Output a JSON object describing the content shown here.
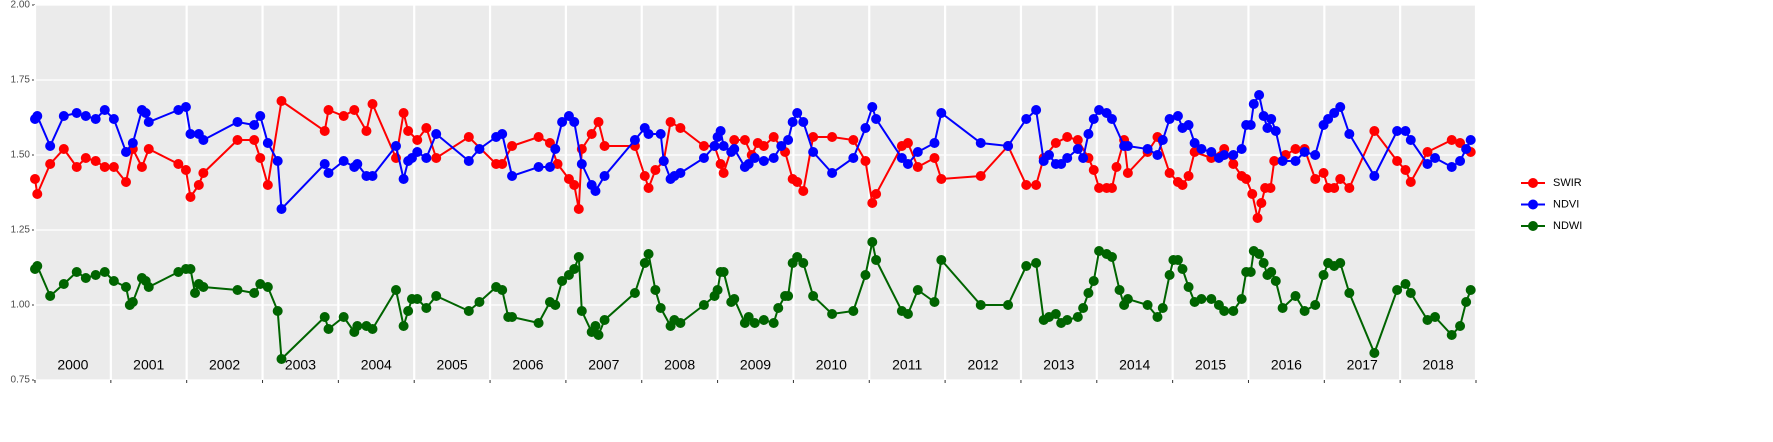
{
  "chart_data": {
    "type": "line",
    "xlim": [
      2000,
      2019
    ],
    "ylim": [
      0.75,
      2.0
    ],
    "yticks": [
      {
        "value": 0.75,
        "label": "0.75"
      },
      {
        "value": 1.0,
        "label": "1.00"
      },
      {
        "value": 1.25,
        "label": "1.25"
      },
      {
        "value": 1.5,
        "label": "1.50"
      },
      {
        "value": 1.75,
        "label": "1.75"
      },
      {
        "value": 2.0,
        "label": "2.00"
      }
    ],
    "xticks": [
      {
        "value": 2000.5,
        "label": "2000"
      },
      {
        "value": 2001.5,
        "label": "2001"
      },
      {
        "value": 2002.5,
        "label": "2002"
      },
      {
        "value": 2003.5,
        "label": "2003"
      },
      {
        "value": 2004.5,
        "label": "2004"
      },
      {
        "value": 2005.5,
        "label": "2005"
      },
      {
        "value": 2006.5,
        "label": "2006"
      },
      {
        "value": 2007.5,
        "label": "2007"
      },
      {
        "value": 2008.5,
        "label": "2008"
      },
      {
        "value": 2009.5,
        "label": "2009"
      },
      {
        "value": 2010.5,
        "label": "2010"
      },
      {
        "value": 2011.5,
        "label": "2011"
      },
      {
        "value": 2012.5,
        "label": "2012"
      },
      {
        "value": 2013.5,
        "label": "2013"
      },
      {
        "value": 2014.5,
        "label": "2014"
      },
      {
        "value": 2015.5,
        "label": "2015"
      },
      {
        "value": 2016.5,
        "label": "2016"
      },
      {
        "value": 2017.5,
        "label": "2017"
      },
      {
        "value": 2018.5,
        "label": "2018"
      }
    ],
    "xgrid": [
      2000,
      2001,
      2002,
      2003,
      2004,
      2005,
      2006,
      2007,
      2008,
      2009,
      2010,
      2011,
      2012,
      2013,
      2014,
      2015,
      2016,
      2017,
      2018,
      2019
    ],
    "grid": true,
    "legend": "right",
    "series": [
      {
        "name": "SWIR",
        "color": "#ff0000",
        "x": [
          2000.0,
          2000.03,
          2000.2,
          2000.38,
          2000.55,
          2000.67,
          2000.8,
          2000.92,
          2001.04,
          2001.2,
          2001.29,
          2001.41,
          2001.5,
          2001.89,
          2001.99,
          2002.05,
          2002.16,
          2002.22,
          2002.67,
          2002.89,
          2002.97,
          2003.07,
          2003.25,
          2003.82,
          2003.87,
          2004.07,
          2004.21,
          2004.37,
          2004.45,
          2004.76,
          2004.86,
          2004.92,
          2005.04,
          2005.16,
          2005.29,
          2005.72,
          2006.08,
          2006.16,
          2006.29,
          2006.64,
          2006.79,
          2006.89,
          2007.04,
          2007.11,
          2007.17,
          2007.21,
          2007.34,
          2007.43,
          2007.51,
          2007.91,
          2008.04,
          2008.09,
          2008.18,
          2008.29,
          2008.38,
          2008.51,
          2008.82,
          2008.96,
          2009.04,
          2009.08,
          2009.22,
          2009.36,
          2009.45,
          2009.53,
          2009.61,
          2009.74,
          2009.89,
          2009.99,
          2010.05,
          2010.13,
          2010.26,
          2010.51,
          2010.79,
          2010.95,
          2011.04,
          2011.09,
          2011.43,
          2011.51,
          2011.64,
          2011.86,
          2011.95,
          2012.47,
          2012.83,
          2013.07,
          2013.2,
          2013.3,
          2013.46,
          2013.61,
          2013.75,
          2013.89,
          2013.96,
          2014.03,
          2014.13,
          2014.2,
          2014.26,
          2014.36,
          2014.41,
          2014.67,
          2014.8,
          2014.96,
          2015.07,
          2015.13,
          2015.21,
          2015.29,
          2015.51,
          2015.68,
          2015.8,
          2015.91,
          2015.97,
          2016.05,
          2016.12,
          2016.17,
          2016.22,
          2016.29,
          2016.34,
          2016.49,
          2016.62,
          2016.74,
          2016.88,
          2016.99,
          2017.05,
          2017.13,
          2017.21,
          2017.33,
          2017.66,
          2017.96,
          2018.07,
          2018.14,
          2018.36,
          2018.68,
          2018.79,
          2018.93
        ],
        "values": [
          1.42,
          1.37,
          1.47,
          1.52,
          1.46,
          1.49,
          1.48,
          1.46,
          1.46,
          1.41,
          1.52,
          1.46,
          1.52,
          1.47,
          1.45,
          1.36,
          1.4,
          1.44,
          1.55,
          1.55,
          1.49,
          1.4,
          1.68,
          1.58,
          1.65,
          1.63,
          1.65,
          1.58,
          1.67,
          1.49,
          1.64,
          1.58,
          1.55,
          1.59,
          1.49,
          1.56,
          1.47,
          1.47,
          1.53,
          1.56,
          1.54,
          1.47,
          1.42,
          1.4,
          1.32,
          1.52,
          1.57,
          1.61,
          1.53,
          1.53,
          1.43,
          1.39,
          1.45,
          1.48,
          1.61,
          1.59,
          1.53,
          1.53,
          1.47,
          1.44,
          1.55,
          1.55,
          1.5,
          1.54,
          1.53,
          1.56,
          1.51,
          1.42,
          1.41,
          1.38,
          1.56,
          1.56,
          1.55,
          1.48,
          1.34,
          1.37,
          1.53,
          1.54,
          1.46,
          1.49,
          1.42,
          1.43,
          1.53,
          1.4,
          1.4,
          1.49,
          1.54,
          1.56,
          1.55,
          1.49,
          1.45,
          1.39,
          1.39,
          1.39,
          1.46,
          1.55,
          1.44,
          1.51,
          1.56,
          1.44,
          1.41,
          1.4,
          1.43,
          1.51,
          1.49,
          1.52,
          1.47,
          1.43,
          1.42,
          1.37,
          1.29,
          1.34,
          1.39,
          1.39,
          1.48,
          1.5,
          1.52,
          1.52,
          1.42,
          1.44,
          1.39,
          1.39,
          1.42,
          1.39,
          1.58,
          1.48,
          1.45,
          1.41,
          1.51,
          1.55,
          1.54,
          1.51
        ]
      },
      {
        "name": "NDVI",
        "color": "#0000ff",
        "x": [
          2000.0,
          2000.03,
          2000.2,
          2000.38,
          2000.55,
          2000.67,
          2000.8,
          2000.92,
          2001.04,
          2001.2,
          2001.29,
          2001.41,
          2001.46,
          2001.5,
          2001.89,
          2001.99,
          2002.05,
          2002.16,
          2002.22,
          2002.67,
          2002.89,
          2002.97,
          2003.07,
          2003.2,
          2003.25,
          2003.82,
          2003.87,
          2004.07,
          2004.21,
          2004.25,
          2004.37,
          2004.45,
          2004.76,
          2004.86,
          2004.92,
          2004.97,
          2005.04,
          2005.16,
          2005.29,
          2005.72,
          2005.86,
          2006.08,
          2006.16,
          2006.29,
          2006.64,
          2006.79,
          2006.86,
          2006.95,
          2007.04,
          2007.11,
          2007.21,
          2007.34,
          2007.39,
          2007.51,
          2007.91,
          2008.04,
          2008.09,
          2008.25,
          2008.29,
          2008.38,
          2008.43,
          2008.51,
          2008.82,
          2008.96,
          2009.0,
          2009.04,
          2009.08,
          2009.18,
          2009.22,
          2009.36,
          2009.41,
          2009.49,
          2009.61,
          2009.74,
          2009.84,
          2009.93,
          2009.99,
          2010.05,
          2010.13,
          2010.26,
          2010.51,
          2010.79,
          2010.95,
          2011.04,
          2011.09,
          2011.43,
          2011.51,
          2011.64,
          2011.86,
          2011.95,
          2012.47,
          2012.83,
          2013.07,
          2013.2,
          2013.3,
          2013.37,
          2013.46,
          2013.53,
          2013.61,
          2013.75,
          2013.82,
          2013.89,
          2013.96,
          2014.03,
          2014.13,
          2014.2,
          2014.36,
          2014.41,
          2014.67,
          2014.8,
          2014.87,
          2014.96,
          2015.07,
          2015.13,
          2015.21,
          2015.29,
          2015.38,
          2015.51,
          2015.61,
          2015.68,
          2015.8,
          2015.91,
          2015.97,
          2016.03,
          2016.07,
          2016.14,
          2016.2,
          2016.25,
          2016.3,
          2016.36,
          2016.45,
          2016.62,
          2016.74,
          2016.88,
          2016.99,
          2017.05,
          2017.13,
          2017.21,
          2017.33,
          2017.66,
          2017.96,
          2018.07,
          2018.14,
          2018.36,
          2018.46,
          2018.68,
          2018.79,
          2018.87,
          2018.93
        ],
        "values": [
          1.62,
          1.63,
          1.53,
          1.63,
          1.64,
          1.63,
          1.62,
          1.65,
          1.62,
          1.51,
          1.54,
          1.65,
          1.64,
          1.61,
          1.65,
          1.66,
          1.57,
          1.57,
          1.55,
          1.61,
          1.6,
          1.63,
          1.54,
          1.48,
          1.32,
          1.47,
          1.44,
          1.48,
          1.46,
          1.47,
          1.43,
          1.43,
          1.53,
          1.42,
          1.48,
          1.49,
          1.51,
          1.49,
          1.57,
          1.48,
          1.52,
          1.56,
          1.57,
          1.43,
          1.46,
          1.46,
          1.52,
          1.61,
          1.63,
          1.61,
          1.47,
          1.4,
          1.38,
          1.43,
          1.55,
          1.59,
          1.57,
          1.57,
          1.48,
          1.42,
          1.43,
          1.44,
          1.49,
          1.53,
          1.56,
          1.58,
          1.53,
          1.51,
          1.52,
          1.46,
          1.47,
          1.49,
          1.48,
          1.49,
          1.53,
          1.55,
          1.61,
          1.64,
          1.61,
          1.51,
          1.44,
          1.49,
          1.59,
          1.66,
          1.62,
          1.49,
          1.47,
          1.51,
          1.54,
          1.64,
          1.54,
          1.53,
          1.62,
          1.65,
          1.48,
          1.5,
          1.47,
          1.47,
          1.49,
          1.52,
          1.49,
          1.57,
          1.62,
          1.65,
          1.64,
          1.62,
          1.53,
          1.53,
          1.52,
          1.5,
          1.55,
          1.62,
          1.63,
          1.59,
          1.6,
          1.54,
          1.52,
          1.51,
          1.49,
          1.5,
          1.5,
          1.52,
          1.6,
          1.6,
          1.67,
          1.7,
          1.63,
          1.59,
          1.62,
          1.58,
          1.48,
          1.48,
          1.51,
          1.5,
          1.6,
          1.62,
          1.64,
          1.66,
          1.57,
          1.43,
          1.58,
          1.58,
          1.55,
          1.47,
          1.49,
          1.46,
          1.48,
          1.52,
          1.55
        ]
      },
      {
        "name": "NDWI",
        "color": "#006400",
        "x": [
          2000.0,
          2000.03,
          2000.2,
          2000.38,
          2000.55,
          2000.67,
          2000.8,
          2000.92,
          2001.04,
          2001.2,
          2001.25,
          2001.29,
          2001.41,
          2001.46,
          2001.5,
          2001.89,
          2001.99,
          2002.05,
          2002.11,
          2002.16,
          2002.22,
          2002.67,
          2002.89,
          2002.97,
          2003.07,
          2003.2,
          2003.25,
          2003.82,
          2003.87,
          2004.07,
          2004.21,
          2004.25,
          2004.37,
          2004.45,
          2004.76,
          2004.86,
          2004.92,
          2004.97,
          2005.04,
          2005.16,
          2005.29,
          2005.72,
          2005.86,
          2006.08,
          2006.16,
          2006.24,
          2006.29,
          2006.64,
          2006.79,
          2006.86,
          2006.95,
          2007.04,
          2007.11,
          2007.17,
          2007.21,
          2007.34,
          2007.39,
          2007.43,
          2007.51,
          2007.91,
          2008.04,
          2008.09,
          2008.18,
          2008.25,
          2008.38,
          2008.43,
          2008.51,
          2008.82,
          2008.96,
          2009.0,
          2009.04,
          2009.08,
          2009.18,
          2009.22,
          2009.36,
          2009.41,
          2009.49,
          2009.61,
          2009.74,
          2009.8,
          2009.89,
          2009.93,
          2009.99,
          2010.05,
          2010.13,
          2010.26,
          2010.51,
          2010.79,
          2010.95,
          2011.04,
          2011.09,
          2011.43,
          2011.51,
          2011.64,
          2011.86,
          2011.95,
          2012.47,
          2012.83,
          2013.07,
          2013.2,
          2013.3,
          2013.37,
          2013.46,
          2013.53,
          2013.61,
          2013.75,
          2013.82,
          2013.89,
          2013.96,
          2014.03,
          2014.13,
          2014.2,
          2014.3,
          2014.36,
          2014.41,
          2014.67,
          2014.8,
          2014.87,
          2014.96,
          2015.01,
          2015.07,
          2015.13,
          2015.21,
          2015.29,
          2015.38,
          2015.51,
          2015.61,
          2015.68,
          2015.8,
          2015.91,
          2015.97,
          2016.03,
          2016.07,
          2016.14,
          2016.2,
          2016.25,
          2016.3,
          2016.36,
          2016.45,
          2016.62,
          2016.74,
          2016.88,
          2016.99,
          2017.05,
          2017.13,
          2017.21,
          2017.33,
          2017.66,
          2017.96,
          2018.07,
          2018.14,
          2018.36,
          2018.46,
          2018.68,
          2018.79,
          2018.87,
          2018.93
        ],
        "values": [
          1.12,
          1.13,
          1.03,
          1.07,
          1.11,
          1.09,
          1.1,
          1.11,
          1.08,
          1.06,
          1.0,
          1.01,
          1.09,
          1.08,
          1.06,
          1.11,
          1.12,
          1.12,
          1.04,
          1.07,
          1.06,
          1.05,
          1.04,
          1.07,
          1.06,
          0.98,
          0.82,
          0.96,
          0.92,
          0.96,
          0.91,
          0.93,
          0.93,
          0.92,
          1.05,
          0.93,
          0.98,
          1.02,
          1.02,
          0.99,
          1.03,
          0.98,
          1.01,
          1.06,
          1.05,
          0.96,
          0.96,
          0.94,
          1.01,
          1.0,
          1.08,
          1.1,
          1.12,
          1.16,
          0.98,
          0.91,
          0.93,
          0.9,
          0.95,
          1.04,
          1.14,
          1.17,
          1.05,
          0.99,
          0.93,
          0.95,
          0.94,
          1.0,
          1.03,
          1.05,
          1.11,
          1.11,
          1.01,
          1.02,
          0.94,
          0.96,
          0.94,
          0.95,
          0.94,
          0.99,
          1.03,
          1.03,
          1.14,
          1.16,
          1.14,
          1.03,
          0.97,
          0.98,
          1.1,
          1.21,
          1.15,
          0.98,
          0.97,
          1.05,
          1.01,
          1.15,
          1.0,
          1.0,
          1.13,
          1.14,
          0.95,
          0.96,
          0.97,
          0.94,
          0.95,
          0.96,
          0.99,
          1.04,
          1.08,
          1.18,
          1.17,
          1.16,
          1.05,
          1.0,
          1.02,
          1.0,
          0.96,
          0.99,
          1.1,
          1.15,
          1.15,
          1.12,
          1.06,
          1.01,
          1.02,
          1.02,
          1.0,
          0.98,
          0.98,
          1.02,
          1.11,
          1.11,
          1.18,
          1.17,
          1.14,
          1.1,
          1.11,
          1.08,
          0.99,
          1.03,
          0.98,
          1.0,
          1.1,
          1.14,
          1.13,
          1.14,
          1.04,
          0.84,
          1.05,
          1.07,
          1.04,
          0.95,
          0.96,
          0.9,
          0.93,
          1.01,
          1.05
        ]
      }
    ]
  }
}
